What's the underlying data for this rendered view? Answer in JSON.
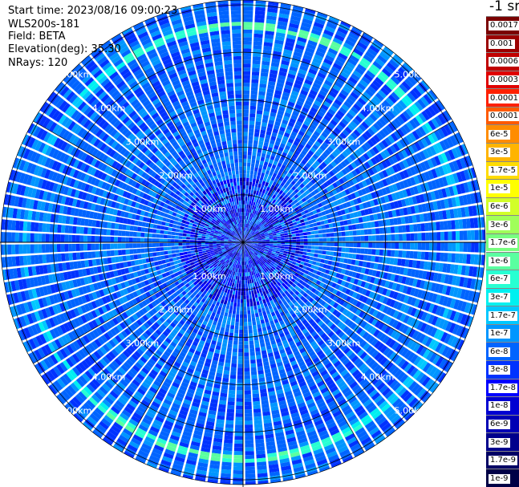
{
  "info": {
    "start_time": "Start time: 2023/08/16 09:00:23",
    "instrument": "WLS200s-181",
    "field": "Field: BETA",
    "elevation": "Elevation(deg): 35.30",
    "nrays": "NRays: 120"
  },
  "colorbar": {
    "unit": "-1 sr",
    "labels": [
      "0.0017",
      "0.001",
      "0.0006",
      "0.0003",
      "0.00017",
      "0.0001",
      "6e-5",
      "3e-5",
      "1.7e-5",
      "1e-5",
      "6e-6",
      "3e-6",
      "1.7e-6",
      "1e-6",
      "6e-7",
      "3e-7",
      "1.7e-7",
      "1e-7",
      "6e-8",
      "3e-8",
      "1.7e-8",
      "1e-8",
      "6e-9",
      "3e-9",
      "1.7e-9",
      "1e-9"
    ],
    "colors": [
      "#7a0000",
      "#9b0000",
      "#c00000",
      "#e00000",
      "#ff2000",
      "#ff5a00",
      "#ff8c00",
      "#ffb400",
      "#ffdc00",
      "#ffff00",
      "#d2ff28",
      "#a0ff5a",
      "#78ff80",
      "#5affa0",
      "#28ffd2",
      "#00f0f0",
      "#00c8ff",
      "#0096ff",
      "#0064ff",
      "#0032ff",
      "#0000ff",
      "#0000d2",
      "#0000b4",
      "#00008c",
      "#000064",
      "#000046"
    ]
  },
  "chart_data": {
    "type": "heatmap",
    "subtype": "polar-ppi",
    "field": "BETA",
    "elevation_deg": 35.3,
    "n_rays": 120,
    "range_rings_km": [
      1.0,
      2.0,
      3.0,
      4.0,
      5.0
    ],
    "ring_labels": [
      "1.00km",
      "2.00km",
      "3.00km",
      "4.00km",
      "5.00km"
    ],
    "max_range_km": 5.1,
    "value_scale": "log",
    "value_range": [
      1e-09,
      0.0017
    ],
    "background_range": [
      3e-08,
      1e-07
    ],
    "aerosol_ring": {
      "range_km": 4.55,
      "value": 1.7e-06
    },
    "near_field": {
      "range_km": [
        0.0,
        1.4
      ],
      "value": 1e-08
    },
    "grid": true
  }
}
